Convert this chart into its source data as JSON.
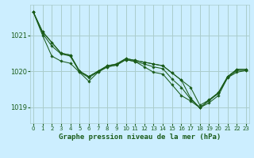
{
  "title": "Graphe pression niveau de la mer (hPa)",
  "bg_color": "#cceeff",
  "grid_color": "#aacccc",
  "line_color": "#1a5c1a",
  "x_labels": [
    "0",
    "1",
    "2",
    "3",
    "4",
    "5",
    "6",
    "7",
    "8",
    "9",
    "10",
    "11",
    "12",
    "13",
    "14",
    "15",
    "16",
    "17",
    "18",
    "19",
    "20",
    "21",
    "22",
    "23"
  ],
  "yticks": [
    1019,
    1020,
    1021
  ],
  "ylim": [
    1018.55,
    1021.85
  ],
  "xlim": [
    -0.3,
    23.3
  ],
  "figsize": [
    3.2,
    2.0
  ],
  "dpi": 100,
  "series": [
    [
      1021.65,
      1021.1,
      1020.8,
      1020.5,
      1020.45,
      1020.0,
      1019.85,
      1020.0,
      1020.15,
      1020.2,
      1020.35,
      1020.3,
      1020.25,
      1020.2,
      1020.15,
      1019.95,
      1019.75,
      1019.55,
      1019.05,
      1019.2,
      1019.4,
      1019.85,
      1020.05,
      1020.05
    ],
    [
      1021.65,
      1021.1,
      1020.8,
      1020.5,
      1020.45,
      1020.0,
      1019.85,
      1020.0,
      1020.15,
      1020.2,
      1020.35,
      1020.3,
      1020.25,
      1020.2,
      1020.15,
      1019.95,
      1019.75,
      1019.25,
      1018.98,
      1019.2,
      1019.4,
      1019.85,
      1020.05,
      1020.05
    ],
    [
      1021.65,
      1021.05,
      1020.7,
      1020.48,
      1020.42,
      1019.98,
      1019.82,
      1019.98,
      1020.12,
      1020.17,
      1020.32,
      1020.27,
      1020.2,
      1020.12,
      1020.07,
      1019.78,
      1019.55,
      1019.22,
      1018.98,
      1019.18,
      1019.38,
      1019.82,
      1020.02,
      1020.02
    ],
    [
      1021.65,
      1021.0,
      1020.42,
      1020.28,
      1020.22,
      1019.97,
      1019.72,
      1019.97,
      1020.12,
      1020.17,
      1020.32,
      1020.27,
      1020.12,
      1019.97,
      1019.92,
      1019.62,
      1019.32,
      1019.17,
      1018.98,
      1019.12,
      1019.32,
      1019.82,
      1019.97,
      1020.02
    ]
  ]
}
